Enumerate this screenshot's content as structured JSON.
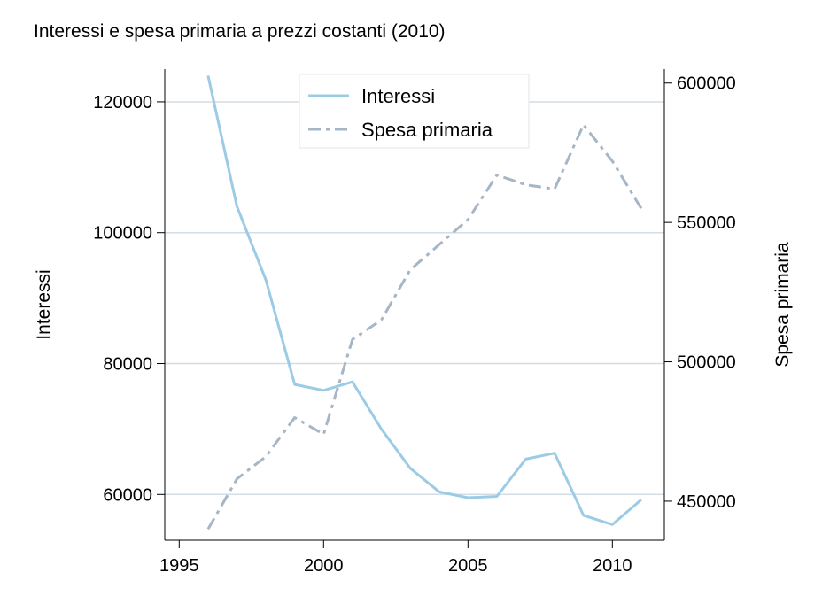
{
  "chart_data": {
    "type": "line",
    "title": "Interessi e spesa primaria a prezzi costanti (2010)",
    "x": [
      1996,
      1997,
      1998,
      1999,
      2000,
      2001,
      2002,
      2003,
      2004,
      2005,
      2006,
      2007,
      2008,
      2009,
      2010,
      2011
    ],
    "xlim": [
      1994.5,
      2011.8
    ],
    "xticks": [
      1995,
      2000,
      2005,
      2010
    ],
    "xlabel": "",
    "y_left": {
      "label": "Interessi",
      "lim": [
        53000,
        125000
      ],
      "ticks": [
        60000,
        80000,
        100000,
        120000
      ]
    },
    "y_right": {
      "label": "Spesa primaria",
      "lim": [
        436000,
        605000
      ],
      "ticks": [
        450000,
        500000,
        550000,
        600000
      ]
    },
    "series": [
      {
        "name": "Interessi",
        "axis": "left",
        "style": "solid",
        "color": "#9ccbe6",
        "values": [
          124000,
          104000,
          92800,
          76800,
          75900,
          77200,
          70000,
          64000,
          60400,
          59500,
          59700,
          65400,
          66300,
          56800,
          55400,
          59200
        ]
      },
      {
        "name": "Spesa primaria",
        "axis": "right",
        "style": "dashdot",
        "color": "#a6b6c6",
        "values": [
          440000,
          458000,
          466000,
          480000,
          474000,
          508000,
          515000,
          533000,
          542000,
          551000,
          567000,
          563500,
          562000,
          585000,
          572000,
          555000
        ]
      }
    ],
    "grid": true,
    "legend_position": "top-center",
    "gridline_color": "#d3dde6"
  }
}
